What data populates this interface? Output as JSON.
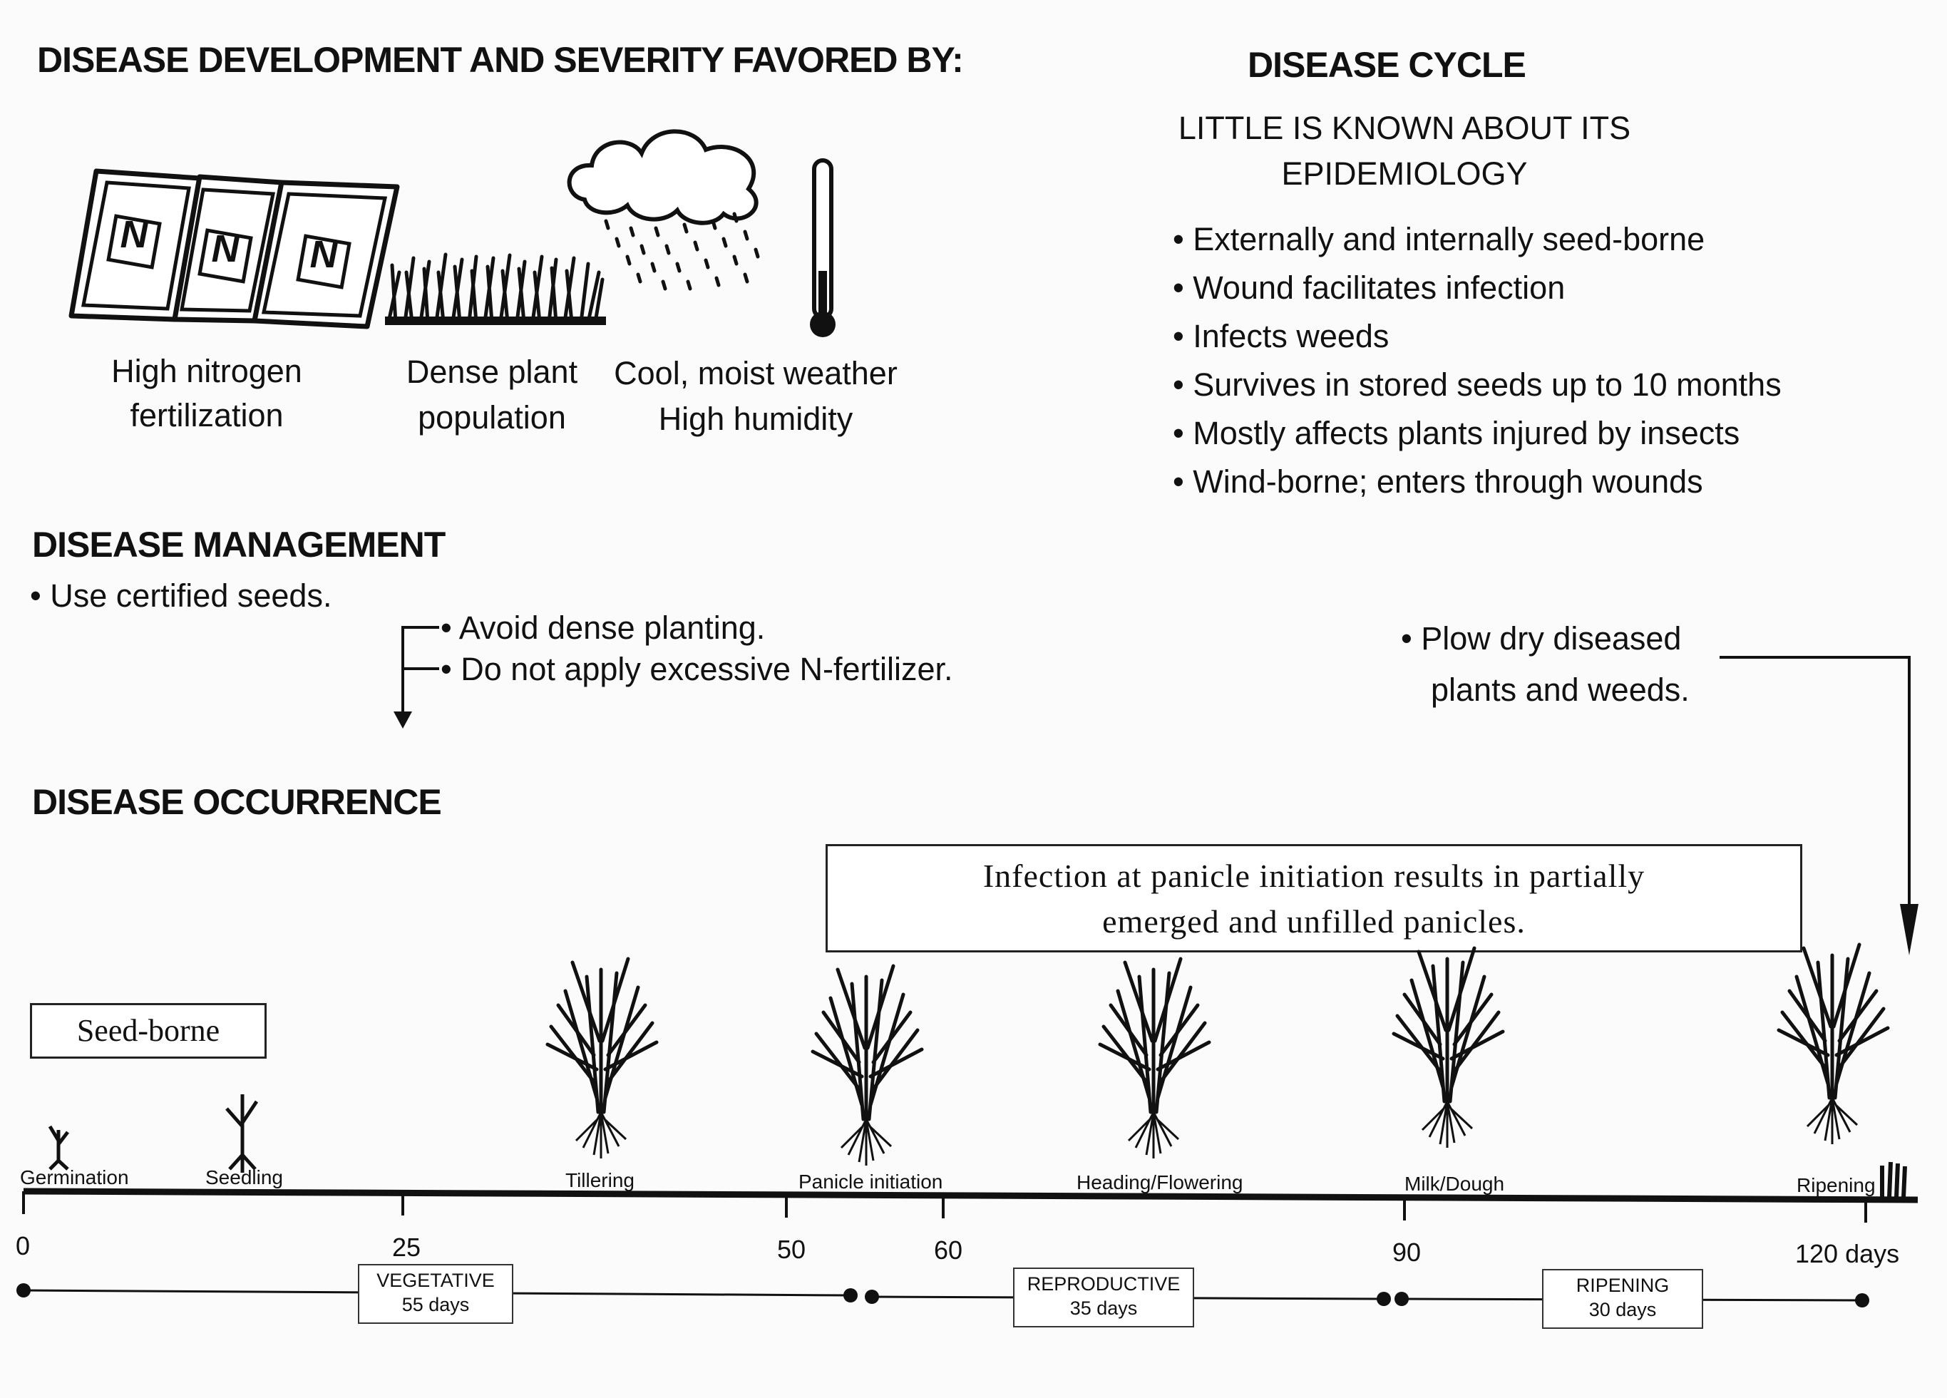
{
  "favored": {
    "title": "DISEASE DEVELOPMENT AND SEVERITY FAVORED BY:",
    "bag_letter": "N",
    "items": [
      {
        "line1": "High nitrogen",
        "line2": "fertilization",
        "icon": "fertilizer-bags-icon"
      },
      {
        "line1": "Dense plant",
        "line2": "population",
        "icon": "dense-grass-icon"
      },
      {
        "line1": "Cool, moist weather",
        "line2": "High humidity",
        "icon": "rain-cloud-icon"
      }
    ]
  },
  "cycle": {
    "title": "DISEASE CYCLE",
    "subtitle1": "LITTLE IS KNOWN ABOUT ITS",
    "subtitle2": "EPIDEMIOLOGY",
    "bullets": [
      "Externally and internally seed-borne",
      "Wound facilitates infection",
      "Infects weeds",
      "Survives in stored seeds up to 10 months",
      "Mostly affects plants injured by insects",
      "Wind-borne; enters through wounds"
    ]
  },
  "management": {
    "title": "DISEASE MANAGEMENT",
    "item1": "Use certified seeds.",
    "item2": "Avoid dense planting.",
    "item3": "Do not apply excessive N-fertilizer.",
    "item4_line1": "Plow dry diseased",
    "item4_line2": "plants and weeds."
  },
  "occurrence": {
    "title": "DISEASE OCCURRENCE",
    "infection_line1": "Infection at panicle initiation results in partially",
    "infection_line2": "emerged and unfilled panicles.",
    "seed_borne": "Seed-borne"
  },
  "timeline": {
    "stages": [
      "Germination",
      "Seedling",
      "Tillering",
      "Panicle initiation",
      "Heading/Flowering",
      "Milk/Dough",
      "Ripening"
    ],
    "ticks": [
      "0",
      "25",
      "50",
      "60",
      "90",
      "120 days"
    ],
    "phases": [
      {
        "name": "VEGETATIVE",
        "days": "55 days"
      },
      {
        "name": "REPRODUCTIVE",
        "days": "35 days"
      },
      {
        "name": "RIPENING",
        "days": "30 days"
      }
    ]
  },
  "colors": {
    "ink": "#111111",
    "background": "#fbfbfb"
  }
}
